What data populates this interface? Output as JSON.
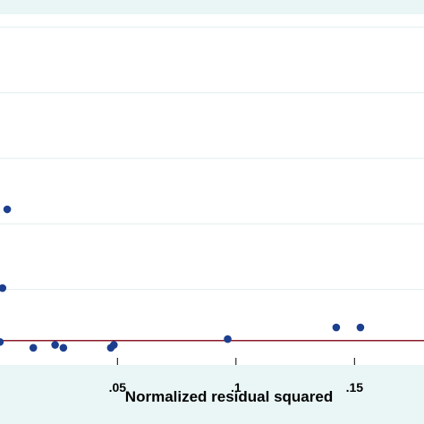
{
  "chart_data": {
    "type": "scatter",
    "title": "",
    "xlabel": "Normalized residual squared",
    "ylabel": "",
    "xlim": [
      0,
      0.175
    ],
    "ylim": [
      0,
      0.32
    ],
    "x_ticks": [
      0.05,
      0.1,
      0.15
    ],
    "x_tick_labels": [
      ".05",
      ".1",
      ".15"
    ],
    "y_grid": [
      0.05,
      0.1,
      0.15,
      0.2,
      0.25,
      0.3
    ],
    "grid": true,
    "reference_line": {
      "orientation": "horizontal",
      "y": 0.0111
    },
    "series": [
      {
        "x": [
          0.0004,
          0.0015,
          0.0035,
          0.0145,
          0.0237,
          0.0272,
          0.0472,
          0.0485,
          0.0965,
          0.1423,
          0.1525
        ],
        "y": [
          0.01,
          0.0511,
          0.1111,
          0.0056,
          0.0078,
          0.0056,
          0.0056,
          0.0078,
          0.0122,
          0.0211,
          0.0211
        ]
      }
    ]
  },
  "colors": {
    "background": "#eaf6f6",
    "plot_area": "#ffffff",
    "grid": "#e2eeee",
    "marker": "#1c3f8f",
    "reference_line": "#8b1a2b"
  }
}
